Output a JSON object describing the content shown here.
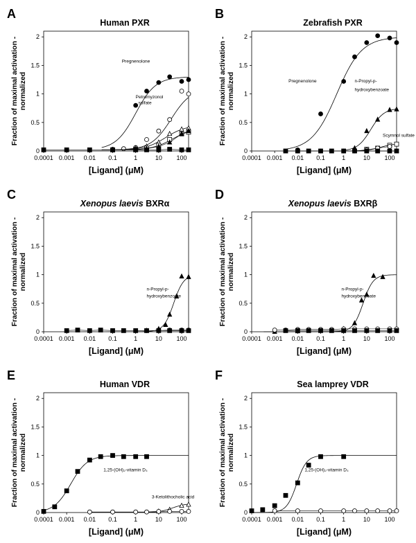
{
  "panels": [
    {
      "letter": "A",
      "title": "Human PXR",
      "title_italic": "",
      "title_suffix": ""
    },
    {
      "letter": "B",
      "title": "Zebrafish PXR",
      "title_italic": "",
      "title_suffix": ""
    },
    {
      "letter": "C",
      "title": "",
      "title_italic": "Xenopus laevis",
      "title_suffix": " BXRα"
    },
    {
      "letter": "D",
      "title": "",
      "title_italic": "Xenopus laevis",
      "title_suffix": " BXRβ"
    },
    {
      "letter": "E",
      "title": "Human VDR",
      "title_italic": "",
      "title_suffix": ""
    },
    {
      "letter": "F",
      "title": "Sea lamprey VDR",
      "title_italic": "",
      "title_suffix": ""
    }
  ],
  "axis": {
    "ylabel_line1": "Fraction of maximal activation -",
    "ylabel_line2": "normalized",
    "xlabel": "[Ligand] (μM)",
    "x_ticks": [
      "0.0001",
      "0.001",
      "0.01",
      "0.1",
      "1",
      "10",
      "100"
    ],
    "y_ticks": [
      "0",
      "0.5",
      "1",
      "1.5",
      "2"
    ]
  },
  "chart_data": [
    {
      "panel": "A",
      "type": "scatter",
      "x_scale": "log",
      "xlim": [
        0.0001,
        200
      ],
      "ylim": [
        0,
        2.1
      ],
      "title": "Human PXR",
      "xlabel": "[Ligand] (μM)",
      "ylabel": "Fraction of maximal activation - normalized",
      "annotations": [
        {
          "text": "Pregnenolone",
          "x": 0.25,
          "y": 1.55
        },
        {
          "text": "Petromyzonol",
          "x": 1.0,
          "y": 0.92
        },
        {
          "text": "sulfate",
          "x": 1.3,
          "y": 0.82
        }
      ],
      "series": [
        {
          "name": "Pregnenolone",
          "marker": "circle-filled",
          "x": [
            0.1,
            1,
            3,
            10,
            30,
            100,
            200
          ],
          "y": [
            0.03,
            0.8,
            1.05,
            1.2,
            1.3,
            1.22,
            1.25
          ],
          "curve": {
            "bottom": 0.02,
            "top": 1.3,
            "ec50": 1.0,
            "hill": 1.0
          }
        },
        {
          "name": "Petromyzonol sulfate",
          "marker": "circle-open",
          "x": [
            0.3,
            1,
            3,
            10,
            30,
            100,
            200
          ],
          "y": [
            0.04,
            0.06,
            0.2,
            0.35,
            0.55,
            1.05,
            1.0
          ],
          "curve": {
            "bottom": 0.02,
            "top": 1.1,
            "ec50": 35,
            "hill": 1.0
          }
        },
        {
          "name": "",
          "marker": "triangle-open",
          "x": [
            0.1,
            1,
            3,
            10,
            30,
            100,
            200
          ],
          "y": [
            0.02,
            0.05,
            0.08,
            0.15,
            0.3,
            0.38,
            0.4
          ],
          "curve": {
            "bottom": 0.02,
            "top": 0.45,
            "ec50": 20,
            "hill": 1.0
          }
        },
        {
          "name": "",
          "marker": "square-open",
          "x": [
            0.1,
            1,
            3,
            10,
            30,
            100,
            200
          ],
          "y": [
            0.02,
            0.03,
            0.05,
            0.1,
            0.2,
            0.3,
            0.33
          ],
          "curve": {
            "bottom": 0.02,
            "top": 0.4,
            "ec50": 40,
            "hill": 1.0
          }
        },
        {
          "name": "",
          "marker": "triangle-filled",
          "x": [
            1,
            3,
            10,
            30,
            100,
            200
          ],
          "y": [
            0.02,
            0.04,
            0.08,
            0.15,
            0.3,
            0.35
          ]
        },
        {
          "name": "",
          "marker": "square-filled",
          "x": [
            0.0001,
            0.001,
            0.01,
            0.1,
            1,
            3,
            10,
            30,
            100,
            200
          ],
          "y": [
            0.02,
            0.02,
            0.02,
            0.02,
            0.02,
            0.02,
            0.02,
            0.03,
            0.02,
            0.02
          ]
        }
      ]
    },
    {
      "panel": "B",
      "type": "scatter",
      "x_scale": "log",
      "xlim": [
        0.0001,
        200
      ],
      "ylim": [
        0,
        2.1
      ],
      "title": "Zebrafish PXR",
      "xlabel": "[Ligand] (μM)",
      "ylabel": "Fraction of maximal activation - normalized",
      "annotations": [
        {
          "text": "Pregnenolone",
          "x": 0.004,
          "y": 1.2
        },
        {
          "text": "n-Propyl-p-",
          "x": 3,
          "y": 1.2
        },
        {
          "text": "hydroxybenzoate",
          "x": 3,
          "y": 1.05
        },
        {
          "text": "Scymnol sulfate",
          "x": 50,
          "y": 0.25
        }
      ],
      "series": [
        {
          "name": "Pregnenolone",
          "marker": "circle-filled",
          "x": [
            0.01,
            0.1,
            1,
            3,
            10,
            30,
            100,
            200
          ],
          "y": [
            0.02,
            0.65,
            1.22,
            1.65,
            1.9,
            2.02,
            1.98,
            1.9
          ],
          "curve": {
            "bottom": 0.0,
            "top": 2.0,
            "ec50": 0.5,
            "hill": 0.8
          }
        },
        {
          "name": "n-Propyl-p-hydroxybenzoate",
          "marker": "triangle-filled",
          "x": [
            3,
            10,
            30,
            100,
            200
          ],
          "y": [
            0.05,
            0.35,
            0.55,
            0.72,
            0.73
          ],
          "curve": {
            "bottom": 0.0,
            "top": 0.75,
            "ec50": 15,
            "hill": 1.5
          }
        },
        {
          "name": "Scymnol sulfate",
          "marker": "square-open",
          "x": [
            10,
            30,
            100,
            200
          ],
          "y": [
            0.03,
            0.05,
            0.1,
            0.12
          ],
          "curve": {
            "bottom": 0.0,
            "top": 0.13,
            "ec50": 40,
            "hill": 1.5
          }
        },
        {
          "name": "",
          "marker": "circle-open",
          "x": [
            0.01,
            0.1,
            1,
            3,
            10,
            30,
            100
          ],
          "y": [
            0.0,
            0.0,
            0.0,
            0.0,
            0.02,
            0.05,
            0.08
          ]
        },
        {
          "name": "",
          "marker": "square-filled",
          "x": [
            0.003,
            0.01,
            0.03,
            0.1,
            0.3,
            1,
            3,
            10,
            30,
            100,
            200
          ],
          "y": [
            0,
            0,
            0,
            0,
            0,
            0,
            0,
            0,
            0,
            0,
            0
          ]
        }
      ]
    },
    {
      "panel": "C",
      "type": "scatter",
      "x_scale": "log",
      "xlim": [
        0.0001,
        200
      ],
      "ylim": [
        0,
        2.1
      ],
      "title": "Xenopus laevis BXRα",
      "xlabel": "[Ligand] (μM)",
      "ylabel": "Fraction of maximal activation - normalized",
      "annotations": [
        {
          "text": "n-Propyl-p-",
          "x": 3,
          "y": 0.72
        },
        {
          "text": "hydroxybenzoate",
          "x": 3,
          "y": 0.6
        }
      ],
      "series": [
        {
          "name": "n-Propyl-p-hydroxybenzoate",
          "marker": "triangle-filled",
          "x": [
            3,
            10,
            20,
            30,
            60,
            100,
            200
          ],
          "y": [
            0.02,
            0.05,
            0.12,
            0.3,
            0.62,
            0.97,
            0.96
          ],
          "curve": {
            "bottom": 0.0,
            "top": 1.0,
            "ec50": 45,
            "hill": 2.0
          }
        },
        {
          "name": "",
          "marker": "circle-open",
          "x": [
            1,
            3,
            10,
            30,
            100,
            200
          ],
          "y": [
            0.02,
            0.02,
            0.02,
            0.03,
            0.03,
            0.03
          ]
        },
        {
          "name": "",
          "marker": "square-filled",
          "x": [
            0.001,
            0.003,
            0.01,
            0.03,
            0.1,
            0.3,
            1,
            3,
            10,
            30,
            100,
            200
          ],
          "y": [
            0.02,
            0.03,
            0.02,
            0.03,
            0.02,
            0.02,
            0.02,
            0.02,
            0.02,
            0.02,
            0.02,
            0.02
          ]
        }
      ]
    },
    {
      "panel": "D",
      "type": "scatter",
      "x_scale": "log",
      "xlim": [
        0.0001,
        200
      ],
      "ylim": [
        0,
        2.1
      ],
      "title": "Xenopus laevis BXRβ",
      "xlabel": "[Ligand] (μM)",
      "ylabel": "Fraction of maximal activation - normalized",
      "annotations": [
        {
          "text": "n-Propyl-p-",
          "x": 0.8,
          "y": 0.72
        },
        {
          "text": "hydroxybenzoate",
          "x": 0.8,
          "y": 0.6
        }
      ],
      "series": [
        {
          "name": "n-Propyl-p-hydroxybenzoate",
          "marker": "triangle-filled",
          "x": [
            0.001,
            0.01,
            0.1,
            1,
            3,
            6,
            10,
            20,
            50
          ],
          "y": [
            0.0,
            0.01,
            0.02,
            0.05,
            0.15,
            0.55,
            0.65,
            0.98,
            0.96
          ],
          "curve": {
            "bottom": 0.0,
            "top": 1.0,
            "ec50": 7,
            "hill": 2.0
          }
        },
        {
          "name": "",
          "marker": "circle-open",
          "x": [
            0.001,
            0.003,
            0.01,
            0.03,
            0.1,
            0.3,
            1,
            3,
            10,
            30,
            100,
            200
          ],
          "y": [
            0.03,
            0.03,
            0.04,
            0.04,
            0.04,
            0.04,
            0.05,
            0.05,
            0.05,
            0.05,
            0.05,
            0.05
          ]
        },
        {
          "name": "",
          "marker": "square-filled",
          "x": [
            0.003,
            0.01,
            0.03,
            0.1,
            0.3,
            1,
            3,
            10,
            30,
            100,
            200
          ],
          "y": [
            0.02,
            0.02,
            0.02,
            0.02,
            0.02,
            0.02,
            0.02,
            0.02,
            0.02,
            0.02,
            0.02
          ]
        }
      ]
    },
    {
      "panel": "E",
      "type": "scatter",
      "x_scale": "log",
      "xlim": [
        0.0001,
        200
      ],
      "ylim": [
        0,
        2.1
      ],
      "title": "Human VDR",
      "xlabel": "[Ligand] (μM)",
      "ylabel": "Fraction of maximal activation - normalized",
      "annotations": [
        {
          "text": "1,25-(OH)₂-vitamin D₃",
          "x": 0.04,
          "y": 0.72
        },
        {
          "text": "3-Ketolithocholic acid",
          "x": 5,
          "y": 0.25
        }
      ],
      "series": [
        {
          "name": "1,25-(OH)₂-vitamin D₃",
          "marker": "square-filled",
          "x": [
            0.0001,
            0.0003,
            0.001,
            0.003,
            0.01,
            0.03,
            0.1,
            0.3,
            1,
            3
          ],
          "y": [
            0.02,
            0.1,
            0.38,
            0.72,
            0.92,
            0.98,
            1.0,
            0.98,
            0.98,
            0.98
          ],
          "curve": {
            "bottom": 0.0,
            "top": 1.0,
            "ec50": 0.0015,
            "hill": 1.2
          }
        },
        {
          "name": "3-Ketolithocholic acid",
          "marker": "triangle-open",
          "x": [
            10,
            30,
            100,
            200
          ],
          "y": [
            0.02,
            0.05,
            0.12,
            0.14
          ],
          "curve": {
            "bottom": 0.0,
            "top": 0.16,
            "ec50": 40,
            "hill": 1.5
          }
        },
        {
          "name": "",
          "marker": "circle-open",
          "x": [
            0.01,
            0.1,
            1,
            3,
            10,
            30,
            100,
            200
          ],
          "y": [
            0.01,
            0.01,
            0.01,
            0.01,
            0.02,
            0.02,
            0.02,
            0.02
          ]
        }
      ]
    },
    {
      "panel": "F",
      "type": "scatter",
      "x_scale": "log",
      "xlim": [
        0.0001,
        200
      ],
      "ylim": [
        0,
        2.1
      ],
      "title": "Sea lamprey VDR",
      "xlabel": "[Ligand] (μM)",
      "ylabel": "Fraction of maximal activation - normalized",
      "annotations": [
        {
          "text": "1,25-(OH)₂-vitamin D₃",
          "x": 0.02,
          "y": 0.72
        }
      ],
      "series": [
        {
          "name": "1,25-(OH)₂-vitamin D₃",
          "marker": "square-filled",
          "x": [
            0.0001,
            0.0003,
            0.001,
            0.003,
            0.01,
            0.03,
            0.1,
            1
          ],
          "y": [
            0.03,
            0.05,
            0.12,
            0.3,
            0.52,
            0.83,
            0.98,
            0.98
          ],
          "curve": {
            "bottom": 0.0,
            "top": 1.0,
            "ec50": 0.009,
            "hill": 2.0
          }
        },
        {
          "name": "",
          "marker": "circle-open",
          "x": [
            0.001,
            0.01,
            0.1,
            1,
            3,
            10,
            30,
            100,
            200
          ],
          "y": [
            0.03,
            0.03,
            0.03,
            0.03,
            0.03,
            0.03,
            0.03,
            0.03,
            0.03
          ]
        }
      ]
    }
  ]
}
